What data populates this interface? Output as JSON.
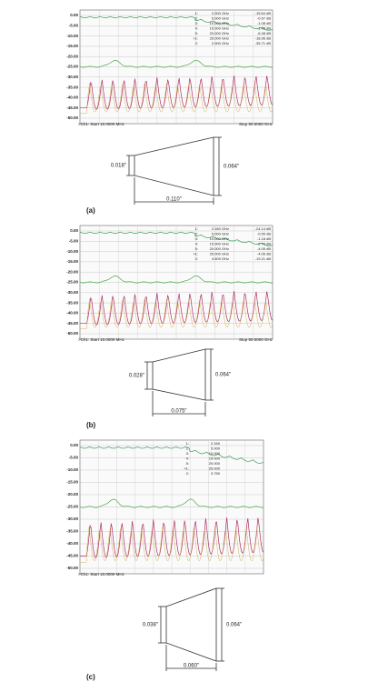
{
  "panels": [
    {
      "label": "(a)",
      "plot": {
        "yticks": [
          "0.00",
          "-5.00",
          "-10.00",
          "-15.00",
          "-20.00",
          "-25.00",
          "-30.00",
          "-35.00",
          "-40.00",
          "-45.00",
          "-50.00"
        ],
        "start": ">Ch1: Start 10.0000 MHz",
        "stop": "Stop 50.0000 GHz",
        "markers": [
          {
            "id": "1:",
            "freq": "2.000 GHz",
            "value": "-15.64 dB"
          },
          {
            "id": "2:",
            "freq": "5.000 GHz",
            "value": "-0.57 dB"
          },
          {
            "id": "3:",
            "freq": "10.000 GHz",
            "value": "-1.08 dB"
          },
          {
            "id": "4:",
            "freq": "15.000 GHz",
            "value": "-1.45 dB"
          },
          {
            "id": "5:",
            "freq": "20.000 GHz",
            "value": "-6.48 dB"
          },
          {
            "id": ">1:",
            "freq": "25.000 GHz",
            "value": "-18.96 dB"
          },
          {
            "id": "2:",
            "freq": "2.000 GHz",
            "value": "-35.71 dB"
          }
        ]
      },
      "taper": {
        "narrow": "0.018\"",
        "wide": "0.064\"",
        "length": "0.110\""
      }
    },
    {
      "label": "(b)",
      "plot": {
        "yticks": [
          "0.00",
          "-5.00",
          "-10.00",
          "-15.00",
          "-20.00",
          "-25.00",
          "-30.00",
          "-35.00",
          "-40.00",
          "-45.00",
          "-50.00"
        ],
        "start": ">Ch1: Start 10.0000 MHz",
        "stop": "Stop 50.0000 GHz",
        "markers": [
          {
            "id": "1:",
            "freq": "2.160 GHz",
            "value": "-24.14 dB"
          },
          {
            "id": "2:",
            "freq": "5.000 GHz",
            "value": "-0.55 dB"
          },
          {
            "id": "3:",
            "freq": "10.000 GHz",
            "value": "-1.18 dB"
          },
          {
            "id": "4:",
            "freq": "15.000 GHz",
            "value": "-2.70 dB"
          },
          {
            "id": "5:",
            "freq": "20.000 GHz",
            "value": "-4.05 dB"
          },
          {
            "id": ">1:",
            "freq": "25.000 GHz",
            "value": "-4.06 dB"
          },
          {
            "id": "2:",
            "freq": "4.509 GHz",
            "value": "-19.21 dB"
          }
        ]
      },
      "taper": {
        "narrow": "0.028\"",
        "wide": "0.064\"",
        "length": "0.075\""
      }
    },
    {
      "label": "(c)",
      "plot": {
        "yticks": [
          "0.00",
          "-5.00",
          "-10.00",
          "-15.00",
          "-20.00",
          "-25.00",
          "-30.00",
          "-35.00",
          "-40.00",
          "-45.00",
          "-50.00"
        ],
        "start": ">Ch1: Start 10.0000 MHz",
        "markers": [
          {
            "id": "1:",
            "freq": "2.160"
          },
          {
            "id": "2:",
            "freq": "5.000"
          },
          {
            "id": "3:",
            "freq": "10.000"
          },
          {
            "id": "4:",
            "freq": "15.000"
          },
          {
            "id": "5:",
            "freq": "20.000"
          },
          {
            "id": ">1:",
            "freq": "25.000"
          },
          {
            "id": "2:",
            "freq": "3.750"
          }
        ]
      },
      "taper": {
        "narrow": "0.038\"",
        "wide": "0.064\"",
        "length": "0.060\""
      }
    }
  ]
}
